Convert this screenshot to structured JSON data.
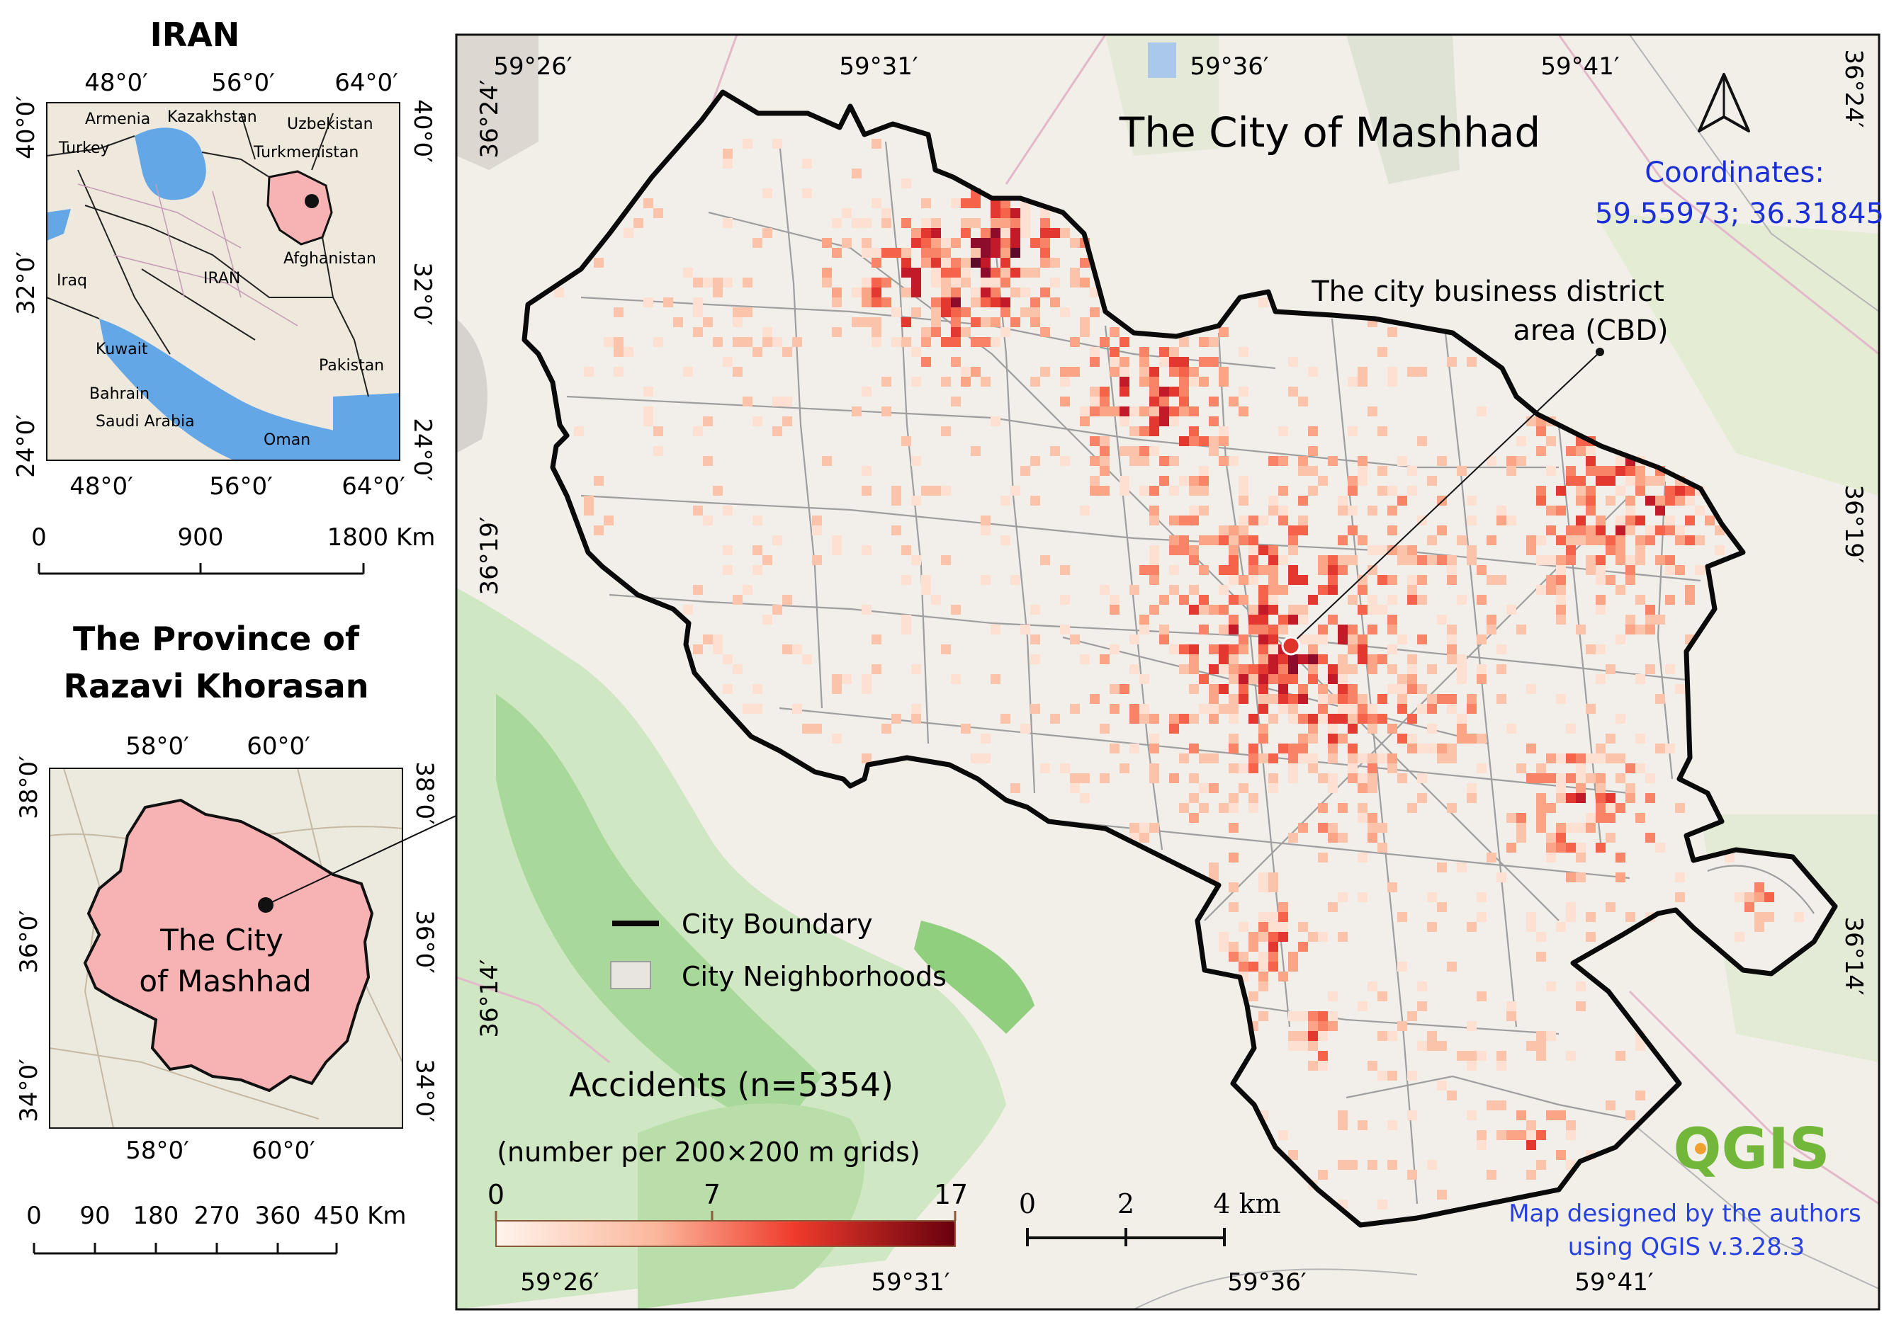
{
  "inset_iran": {
    "title": "IRAN",
    "top_ticks": [
      "48°0′",
      "56°0′",
      "64°0′"
    ],
    "bottom_ticks": [
      "48°0′",
      "56°0′",
      "64°0′"
    ],
    "left_ticks": [
      "40°0′",
      "32°0′",
      "24°0′"
    ],
    "right_ticks": [
      "40°0′",
      "32°0′",
      "24°0′"
    ],
    "labels": [
      "Armenia",
      "Kazakhstan",
      "Uzbekistan",
      "Turkey",
      "Turkmenistan",
      "Afghanistan",
      "Iraq",
      "IRAN",
      "Kuwait",
      "Pakistan",
      "Bahrain",
      "Saudi Arabia",
      "Oman"
    ],
    "scale": {
      "ticks": [
        "0",
        "900",
        "1800 Km"
      ]
    }
  },
  "inset_province": {
    "title_line1": "The Province of",
    "title_line2": "Razavi Khorasan",
    "top_ticks": [
      "58°0′",
      "60°0′"
    ],
    "bottom_ticks": [
      "58°0′",
      "60°0′"
    ],
    "left_ticks": [
      "38°0′",
      "36°0′",
      "34°0′"
    ],
    "right_ticks": [
      "38°0′",
      "36°0′",
      "34°0′"
    ],
    "city_label_line1": "The City",
    "city_label_line2": "of Mashhad",
    "scale": {
      "ticks": [
        "0",
        "90",
        "180",
        "270",
        "360",
        "450 Km"
      ]
    }
  },
  "main_map": {
    "title": "The City of Mashhad",
    "coordinates_label": "Coordinates:",
    "coordinates_value": "59.55973; 36.31845",
    "cbd_line1": "The city business district",
    "cbd_line2": "area (CBD)",
    "top_ticks": [
      "59°26′",
      "59°31′",
      "59°36′",
      "59°41′"
    ],
    "bottom_ticks": [
      "59°26′",
      "59°31′",
      "59°36′",
      "59°41′"
    ],
    "left_ticks": [
      "36°24′",
      "36°19′",
      "36°14′"
    ],
    "right_ticks": [
      "36°24′",
      "36°19′",
      "36°14′"
    ],
    "legend": {
      "boundary_label": "City Boundary",
      "neighborhoods_label": "City Neighborhoods",
      "accidents_title": "Accidents (n=5354)",
      "accidents_subtitle": "(number per 200×200 m grids)",
      "color_ticks": [
        "0",
        "7",
        "17"
      ],
      "color_min": 0,
      "color_max": 17
    },
    "scale": {
      "ticks": [
        "0",
        "2",
        "4 km"
      ]
    },
    "qgis_logo": "QGIS",
    "credit_line1": "Map designed  by the authors",
    "credit_line2": "using QGIS v.3.28.3",
    "colors": {
      "heat_low": "#fde4d6",
      "heat_mid": "#f2614a",
      "heat_high": "#6e0f28",
      "coordinate_text": "#1a2fd6",
      "credit_text": "#2742e0",
      "water": "#64a7e6",
      "province_fill": "#f7b3b3",
      "park_green": "#a8d89a"
    },
    "icons": [
      "north-arrow-icon",
      "qgis-logo-icon"
    ]
  }
}
